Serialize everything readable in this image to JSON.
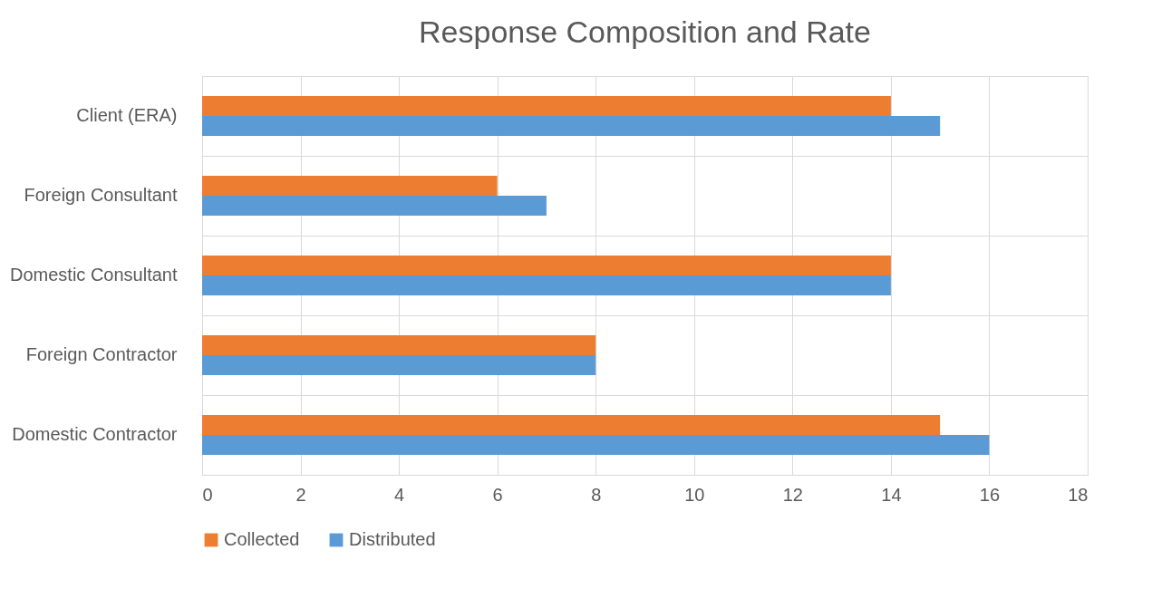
{
  "chart_data": {
    "type": "bar",
    "orientation": "horizontal",
    "title": "Response Composition and Rate",
    "categories": [
      "Client (ERA)",
      "Foreign Consultant",
      "Domestic Consultant",
      "Foreign Contractor",
      "Domestic Contractor"
    ],
    "series": [
      {
        "name": "Collected",
        "color": "#ed7d31",
        "values": [
          14,
          6,
          14,
          8,
          15
        ]
      },
      {
        "name": "Distributed",
        "color": "#5b9bd5",
        "values": [
          15,
          7,
          14,
          8,
          16
        ]
      }
    ],
    "xlim": [
      0,
      18
    ],
    "xticks": [
      0,
      2,
      4,
      6,
      8,
      10,
      12,
      14,
      16,
      18
    ],
    "grid": true,
    "legend": "bottom"
  }
}
